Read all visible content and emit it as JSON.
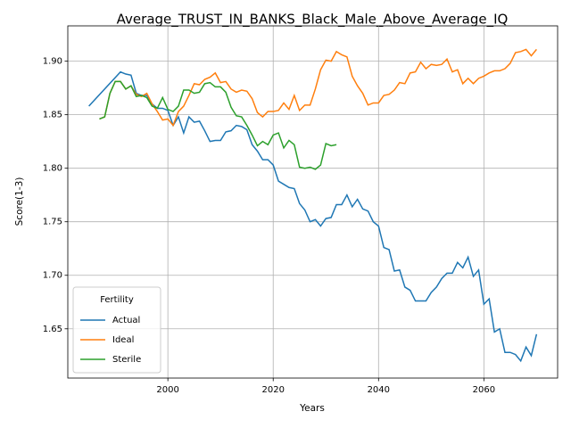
{
  "chart_data": {
    "type": "line",
    "title": "Average_TRUST_IN_BANKS_Black_Male_Above_Average_IQ",
    "xlabel": "Years",
    "ylabel": "Score(1-3)",
    "legend_title": "Fertility",
    "legend": "lower left",
    "grid": true,
    "xlim": [
      1981,
      2074
    ],
    "ylim": [
      1.604,
      1.933
    ],
    "xticks": [
      2000,
      2020,
      2040,
      2060
    ],
    "yticks": [
      1.65,
      {
        "value": 1.7,
        "label": "1.70"
      },
      1.75,
      {
        "value": 1.8,
        "label": "1.80"
      },
      1.85,
      {
        "value": 1.9,
        "label": "1.90"
      }
    ],
    "series": [
      {
        "name": "Actual",
        "color": "#1f77b4",
        "x": [
          1985,
          1991,
          1992,
          1993,
          1994,
          1995,
          1996,
          1997,
          1998,
          1999,
          2000,
          2001,
          2002,
          2003,
          2004,
          2005,
          2006,
          2007,
          2008,
          2009,
          2010,
          2011,
          2012,
          2013,
          2014,
          2015,
          2016,
          2017,
          2018,
          2019,
          2020,
          2021,
          2022,
          2023,
          2024,
          2025,
          2026,
          2027,
          2028,
          2029,
          2030,
          2031,
          2032,
          2033,
          2034,
          2035,
          2036,
          2037,
          2038,
          2039,
          2040,
          2041,
          2042,
          2043,
          2044,
          2045,
          2046,
          2047,
          2048,
          2049,
          2050,
          2051,
          2052,
          2053,
          2054,
          2055,
          2056,
          2057,
          2058,
          2059,
          2060,
          2061,
          2062,
          2063,
          2064,
          2065,
          2066,
          2067,
          2068,
          2069,
          2070
        ],
        "values": [
          1.858,
          1.89,
          1.888,
          1.887,
          1.87,
          1.868,
          1.868,
          1.86,
          1.856,
          1.856,
          1.854,
          1.84,
          1.848,
          1.833,
          1.848,
          1.843,
          1.844,
          1.835,
          1.825,
          1.826,
          1.826,
          1.834,
          1.835,
          1.84,
          1.839,
          1.836,
          1.822,
          1.816,
          1.808,
          1.808,
          1.803,
          1.788,
          1.785,
          1.782,
          1.781,
          1.767,
          1.761,
          1.75,
          1.752,
          1.746,
          1.753,
          1.754,
          1.766,
          1.766,
          1.775,
          1.764,
          1.771,
          1.762,
          1.76,
          1.75,
          1.746,
          1.726,
          1.724,
          1.704,
          1.705,
          1.689,
          1.686,
          1.676,
          1.676,
          1.676,
          1.684,
          1.689,
          1.697,
          1.702,
          1.702,
          1.712,
          1.707,
          1.717,
          1.699,
          1.705,
          1.673,
          1.678,
          1.647,
          1.65,
          1.628,
          1.628,
          1.626,
          1.62,
          1.633,
          1.625,
          1.645
        ]
      },
      {
        "name": "Ideal",
        "color": "#ff7f0e",
        "x": [
          1987,
          1988,
          1989,
          1990,
          1991,
          1992,
          1993,
          1994,
          1995,
          1996,
          1997,
          1998,
          1999,
          2000,
          2001,
          2002,
          2003,
          2004,
          2005,
          2006,
          2007,
          2008,
          2009,
          2010,
          2011,
          2012,
          2013,
          2014,
          2015,
          2016,
          2017,
          2018,
          2019,
          2020,
          2021,
          2022,
          2023,
          2024,
          2025,
          2026,
          2027,
          2028,
          2029,
          2030,
          2031,
          2032,
          2033,
          2034,
          2035,
          2036,
          2037,
          2038,
          2039,
          2040,
          2041,
          2042,
          2043,
          2044,
          2045,
          2046,
          2047,
          2048,
          2049,
          2050,
          2051,
          2052,
          2053,
          2054,
          2055,
          2056,
          2057,
          2058,
          2059,
          2060,
          2061,
          2062,
          2063,
          2064,
          2065,
          2066,
          2067,
          2068,
          2069,
          2070
        ],
        "values": [
          1.846,
          1.848,
          1.87,
          1.881,
          1.881,
          1.874,
          1.877,
          1.869,
          1.867,
          1.87,
          1.86,
          1.853,
          1.845,
          1.846,
          1.84,
          1.853,
          1.858,
          1.868,
          1.879,
          1.878,
          1.883,
          1.885,
          1.889,
          1.88,
          1.881,
          1.874,
          1.871,
          1.873,
          1.872,
          1.865,
          1.852,
          1.848,
          1.853,
          1.853,
          1.854,
          1.861,
          1.855,
          1.868,
          1.854,
          1.859,
          1.859,
          1.874,
          1.892,
          1.901,
          1.9,
          1.909,
          1.906,
          1.904,
          1.886,
          1.877,
          1.87,
          1.859,
          1.861,
          1.861,
          1.868,
          1.869,
          1.873,
          1.88,
          1.879,
          1.889,
          1.89,
          1.899,
          1.893,
          1.897,
          1.896,
          1.897,
          1.902,
          1.89,
          1.892,
          1.879,
          1.884,
          1.879,
          1.884,
          1.886,
          1.889,
          1.891,
          1.891,
          1.893,
          1.898,
          1.908,
          1.909,
          1.911,
          1.905,
          1.911
        ]
      },
      {
        "name": "Sterile",
        "color": "#2ca02c",
        "x": [
          1987,
          1988,
          1989,
          1990,
          1991,
          1992,
          1993,
          1994,
          1995,
          1996,
          1997,
          1998,
          1999,
          2000,
          2001,
          2002,
          2003,
          2004,
          2005,
          2006,
          2007,
          2008,
          2009,
          2010,
          2011,
          2012,
          2013,
          2014,
          2015,
          2016,
          2017,
          2018,
          2019,
          2020,
          2021,
          2022,
          2023,
          2024,
          2025,
          2026,
          2027,
          2028,
          2029,
          2030,
          2031,
          2032
        ],
        "values": [
          1.846,
          1.848,
          1.87,
          1.881,
          1.881,
          1.874,
          1.877,
          1.867,
          1.868,
          1.866,
          1.858,
          1.856,
          1.866,
          1.855,
          1.853,
          1.858,
          1.873,
          1.873,
          1.87,
          1.871,
          1.879,
          1.88,
          1.876,
          1.876,
          1.871,
          1.857,
          1.849,
          1.848,
          1.84,
          1.831,
          1.821,
          1.825,
          1.822,
          1.831,
          1.833,
          1.819,
          1.826,
          1.822,
          1.801,
          1.8,
          1.801,
          1.799,
          1.803,
          1.823,
          1.821,
          1.822
        ]
      }
    ]
  }
}
